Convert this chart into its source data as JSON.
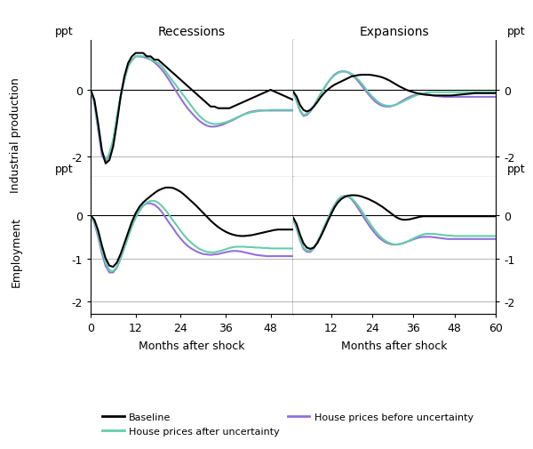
{
  "col_titles": [
    "Recessions",
    "Expansions"
  ],
  "row_labels": [
    "Industrial production",
    "Employment"
  ],
  "xlabel": "Months after shock",
  "ylabel_ppt": "ppt",
  "x_rec": [
    0,
    1,
    2,
    3,
    4,
    5,
    6,
    7,
    8,
    9,
    10,
    11,
    12,
    13,
    14,
    15,
    16,
    17,
    18,
    19,
    20,
    21,
    22,
    23,
    24,
    25,
    26,
    27,
    28,
    29,
    30,
    31,
    32,
    33,
    34,
    35,
    36,
    37,
    38,
    39,
    40,
    41,
    42,
    43,
    44,
    45,
    46,
    47,
    48,
    49,
    50,
    51,
    52,
    53,
    54
  ],
  "x_exp": [
    1,
    2,
    3,
    4,
    5,
    6,
    7,
    8,
    9,
    10,
    11,
    12,
    13,
    14,
    15,
    16,
    17,
    18,
    19,
    20,
    21,
    22,
    23,
    24,
    25,
    26,
    27,
    28,
    29,
    30,
    31,
    32,
    33,
    34,
    35,
    36,
    37,
    38,
    39,
    40,
    41,
    42,
    43,
    44,
    45,
    46,
    47,
    48,
    49,
    50,
    51,
    52,
    53,
    54,
    55,
    56,
    57,
    58,
    59,
    60
  ],
  "ip_rec_baseline": [
    0,
    -0.3,
    -1.0,
    -1.8,
    -2.2,
    -2.1,
    -1.7,
    -1.0,
    -0.2,
    0.4,
    0.8,
    1.0,
    1.1,
    1.1,
    1.1,
    1.0,
    1.0,
    0.9,
    0.9,
    0.8,
    0.7,
    0.6,
    0.5,
    0.4,
    0.3,
    0.2,
    0.1,
    0.0,
    -0.1,
    -0.2,
    -0.3,
    -0.4,
    -0.5,
    -0.5,
    -0.55,
    -0.55,
    -0.55,
    -0.55,
    -0.5,
    -0.45,
    -0.4,
    -0.35,
    -0.3,
    -0.25,
    -0.2,
    -0.15,
    -0.1,
    -0.05,
    0.0,
    -0.05,
    -0.1,
    -0.15,
    -0.2,
    -0.25,
    -0.3
  ],
  "ip_rec_after": [
    0,
    -0.35,
    -1.1,
    -1.85,
    -2.1,
    -1.9,
    -1.5,
    -0.8,
    -0.2,
    0.3,
    0.7,
    0.9,
    1.0,
    1.0,
    1.0,
    1.0,
    0.9,
    0.85,
    0.8,
    0.7,
    0.55,
    0.4,
    0.25,
    0.1,
    -0.05,
    -0.2,
    -0.35,
    -0.5,
    -0.65,
    -0.78,
    -0.88,
    -0.96,
    -1.0,
    -1.02,
    -1.02,
    -1.0,
    -0.97,
    -0.93,
    -0.88,
    -0.83,
    -0.78,
    -0.73,
    -0.7,
    -0.67,
    -0.65,
    -0.63,
    -0.62,
    -0.61,
    -0.6,
    -0.6,
    -0.6,
    -0.6,
    -0.6,
    -0.6,
    -0.6
  ],
  "ip_rec_before": [
    0,
    -0.4,
    -1.2,
    -1.95,
    -2.15,
    -1.95,
    -1.55,
    -0.85,
    -0.2,
    0.3,
    0.7,
    0.88,
    1.0,
    1.0,
    0.98,
    0.95,
    0.9,
    0.82,
    0.72,
    0.6,
    0.45,
    0.28,
    0.1,
    -0.08,
    -0.25,
    -0.42,
    -0.57,
    -0.7,
    -0.82,
    -0.93,
    -1.01,
    -1.07,
    -1.1,
    -1.1,
    -1.08,
    -1.05,
    -1.0,
    -0.95,
    -0.9,
    -0.84,
    -0.78,
    -0.73,
    -0.68,
    -0.65,
    -0.63,
    -0.62,
    -0.62,
    -0.62,
    -0.62,
    -0.62,
    -0.62,
    -0.62,
    -0.62,
    -0.62,
    -0.62
  ],
  "ip_exp_baseline": [
    -0.05,
    -0.2,
    -0.45,
    -0.6,
    -0.65,
    -0.6,
    -0.5,
    -0.37,
    -0.22,
    -0.1,
    -0.0,
    0.08,
    0.15,
    0.2,
    0.25,
    0.3,
    0.35,
    0.4,
    0.42,
    0.44,
    0.45,
    0.45,
    0.45,
    0.44,
    0.42,
    0.4,
    0.37,
    0.33,
    0.28,
    0.22,
    0.16,
    0.1,
    0.05,
    0.0,
    -0.04,
    -0.07,
    -0.1,
    -0.12,
    -0.14,
    -0.15,
    -0.16,
    -0.17,
    -0.17,
    -0.17,
    -0.17,
    -0.17,
    -0.17,
    -0.16,
    -0.15,
    -0.14,
    -0.13,
    -0.12,
    -0.11,
    -0.1,
    -0.1,
    -0.1,
    -0.1,
    -0.1,
    -0.1,
    -0.1
  ],
  "ip_exp_after": [
    -0.05,
    -0.3,
    -0.6,
    -0.75,
    -0.72,
    -0.62,
    -0.48,
    -0.3,
    -0.12,
    0.05,
    0.2,
    0.33,
    0.43,
    0.5,
    0.54,
    0.55,
    0.53,
    0.48,
    0.4,
    0.3,
    0.18,
    0.05,
    -0.08,
    -0.2,
    -0.3,
    -0.38,
    -0.44,
    -0.47,
    -0.48,
    -0.47,
    -0.44,
    -0.4,
    -0.35,
    -0.3,
    -0.25,
    -0.2,
    -0.16,
    -0.12,
    -0.1,
    -0.08,
    -0.07,
    -0.07,
    -0.07,
    -0.07,
    -0.07,
    -0.07,
    -0.07,
    -0.07,
    -0.07,
    -0.07,
    -0.07,
    -0.07,
    -0.07,
    -0.07,
    -0.07,
    -0.07,
    -0.07,
    -0.07,
    -0.07,
    -0.07
  ],
  "ip_exp_before": [
    -0.05,
    -0.33,
    -0.63,
    -0.78,
    -0.75,
    -0.65,
    -0.5,
    -0.32,
    -0.13,
    0.04,
    0.2,
    0.34,
    0.45,
    0.52,
    0.55,
    0.55,
    0.52,
    0.46,
    0.37,
    0.25,
    0.12,
    -0.01,
    -0.14,
    -0.26,
    -0.36,
    -0.43,
    -0.48,
    -0.5,
    -0.5,
    -0.48,
    -0.44,
    -0.38,
    -0.32,
    -0.26,
    -0.21,
    -0.17,
    -0.14,
    -0.13,
    -0.13,
    -0.14,
    -0.15,
    -0.17,
    -0.19,
    -0.2,
    -0.21,
    -0.21,
    -0.21,
    -0.21,
    -0.21,
    -0.21,
    -0.21,
    -0.21,
    -0.21,
    -0.21,
    -0.21,
    -0.21,
    -0.21,
    -0.21,
    -0.21,
    -0.21
  ],
  "emp_rec_baseline": [
    0,
    -0.1,
    -0.35,
    -0.7,
    -1.0,
    -1.17,
    -1.2,
    -1.1,
    -0.9,
    -0.65,
    -0.4,
    -0.15,
    0.05,
    0.2,
    0.3,
    0.38,
    0.45,
    0.52,
    0.58,
    0.62,
    0.65,
    0.65,
    0.64,
    0.6,
    0.55,
    0.48,
    0.4,
    0.32,
    0.24,
    0.15,
    0.06,
    -0.03,
    -0.12,
    -0.2,
    -0.27,
    -0.33,
    -0.38,
    -0.42,
    -0.45,
    -0.47,
    -0.48,
    -0.48,
    -0.47,
    -0.46,
    -0.44,
    -0.42,
    -0.4,
    -0.38,
    -0.36,
    -0.34,
    -0.33,
    -0.33,
    -0.33,
    -0.33,
    -0.33
  ],
  "emp_rec_after": [
    0,
    -0.15,
    -0.45,
    -0.8,
    -1.1,
    -1.28,
    -1.3,
    -1.2,
    -1.0,
    -0.75,
    -0.5,
    -0.26,
    -0.06,
    0.1,
    0.22,
    0.3,
    0.34,
    0.34,
    0.3,
    0.22,
    0.12,
    0.0,
    -0.12,
    -0.24,
    -0.36,
    -0.47,
    -0.57,
    -0.65,
    -0.72,
    -0.78,
    -0.82,
    -0.85,
    -0.86,
    -0.86,
    -0.84,
    -0.82,
    -0.79,
    -0.76,
    -0.74,
    -0.73,
    -0.73,
    -0.73,
    -0.74,
    -0.74,
    -0.75,
    -0.75,
    -0.76,
    -0.76,
    -0.77,
    -0.77,
    -0.77,
    -0.77,
    -0.77,
    -0.77,
    -0.77
  ],
  "emp_rec_before": [
    0,
    -0.18,
    -0.5,
    -0.88,
    -1.18,
    -1.33,
    -1.33,
    -1.22,
    -1.0,
    -0.75,
    -0.49,
    -0.24,
    -0.04,
    0.12,
    0.23,
    0.28,
    0.28,
    0.25,
    0.18,
    0.08,
    -0.05,
    -0.18,
    -0.3,
    -0.43,
    -0.54,
    -0.64,
    -0.72,
    -0.78,
    -0.83,
    -0.87,
    -0.9,
    -0.91,
    -0.92,
    -0.91,
    -0.9,
    -0.88,
    -0.86,
    -0.84,
    -0.83,
    -0.83,
    -0.84,
    -0.86,
    -0.88,
    -0.9,
    -0.92,
    -0.93,
    -0.94,
    -0.95,
    -0.95,
    -0.95,
    -0.95,
    -0.95,
    -0.95,
    -0.95,
    -0.95
  ],
  "emp_exp_baseline": [
    -0.05,
    -0.2,
    -0.45,
    -0.65,
    -0.75,
    -0.78,
    -0.75,
    -0.65,
    -0.5,
    -0.33,
    -0.15,
    0.02,
    0.18,
    0.3,
    0.38,
    0.43,
    0.46,
    0.47,
    0.47,
    0.46,
    0.44,
    0.41,
    0.38,
    0.34,
    0.3,
    0.25,
    0.2,
    0.14,
    0.08,
    0.02,
    -0.04,
    -0.08,
    -0.1,
    -0.1,
    -0.09,
    -0.07,
    -0.05,
    -0.03,
    -0.02,
    -0.02,
    -0.02,
    -0.02,
    -0.02,
    -0.02,
    -0.02,
    -0.02,
    -0.02,
    -0.02,
    -0.02,
    -0.02,
    -0.02,
    -0.02,
    -0.02,
    -0.02,
    -0.02,
    -0.02,
    -0.02,
    -0.02,
    -0.02,
    -0.02
  ],
  "emp_exp_after": [
    -0.08,
    -0.28,
    -0.55,
    -0.75,
    -0.82,
    -0.82,
    -0.75,
    -0.62,
    -0.46,
    -0.28,
    -0.1,
    0.08,
    0.23,
    0.35,
    0.42,
    0.45,
    0.44,
    0.4,
    0.32,
    0.22,
    0.1,
    -0.02,
    -0.14,
    -0.26,
    -0.37,
    -0.46,
    -0.54,
    -0.6,
    -0.64,
    -0.67,
    -0.68,
    -0.67,
    -0.65,
    -0.62,
    -0.58,
    -0.54,
    -0.5,
    -0.47,
    -0.44,
    -0.43,
    -0.43,
    -0.43,
    -0.44,
    -0.45,
    -0.46,
    -0.47,
    -0.47,
    -0.48,
    -0.48,
    -0.48,
    -0.48,
    -0.48,
    -0.48,
    -0.48,
    -0.48,
    -0.48,
    -0.48,
    -0.48,
    -0.48,
    -0.48
  ],
  "emp_exp_before": [
    -0.08,
    -0.3,
    -0.58,
    -0.78,
    -0.85,
    -0.85,
    -0.77,
    -0.64,
    -0.47,
    -0.28,
    -0.1,
    0.08,
    0.24,
    0.36,
    0.43,
    0.46,
    0.44,
    0.38,
    0.28,
    0.16,
    0.03,
    -0.1,
    -0.22,
    -0.33,
    -0.43,
    -0.52,
    -0.58,
    -0.63,
    -0.66,
    -0.68,
    -0.68,
    -0.67,
    -0.65,
    -0.62,
    -0.59,
    -0.56,
    -0.53,
    -0.51,
    -0.5,
    -0.5,
    -0.5,
    -0.51,
    -0.52,
    -0.53,
    -0.54,
    -0.55,
    -0.55,
    -0.55,
    -0.55,
    -0.55,
    -0.55,
    -0.55,
    -0.55,
    -0.55,
    -0.55,
    -0.55,
    -0.55,
    -0.55,
    -0.55,
    -0.55
  ],
  "colors": {
    "baseline": "#000000",
    "after": "#66cdaa",
    "before": "#9370db"
  },
  "linewidth": 1.5,
  "ylim_ip": [
    -2.6,
    1.5
  ],
  "ylim_emp": [
    -2.3,
    0.9
  ],
  "yticks_ip": [
    -2,
    0
  ],
  "yticks_emp": [
    -2,
    -1,
    0
  ],
  "xticks_rec": [
    0,
    12,
    24,
    36,
    48
  ],
  "xticks_exp": [
    12,
    24,
    36,
    48,
    60
  ],
  "xlim_rec": [
    0,
    54
  ],
  "xlim_exp": [
    1,
    60
  ],
  "legend_labels": [
    "Baseline",
    "House prices after uncertainty",
    "House prices before uncertainty"
  ],
  "background_color": "#ffffff"
}
